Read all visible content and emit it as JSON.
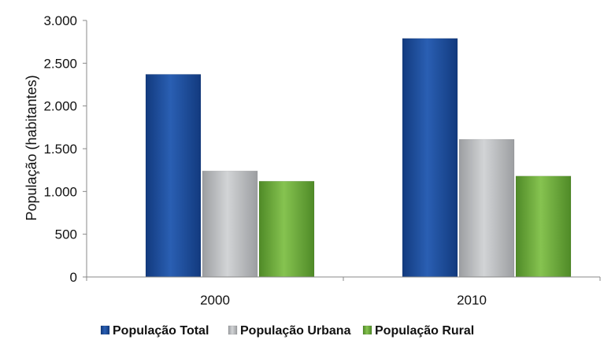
{
  "chart_data": {
    "type": "bar",
    "title": "",
    "xlabel": "",
    "ylabel": "População (habitantes)",
    "categories": [
      "2000",
      "2010"
    ],
    "ylim": [
      0,
      3000
    ],
    "yticks": [
      0,
      500,
      1000,
      1500,
      2000,
      2500,
      3000
    ],
    "ytick_labels": [
      "0",
      "500",
      "1.000",
      "1.500",
      "2.000",
      "2.500",
      "3.000"
    ],
    "grid": false,
    "legend_position": "bottom",
    "series": [
      {
        "name": "População Total",
        "values": [
          2370,
          2790
        ],
        "color": "#1f4e9c"
      },
      {
        "name": "População Urbana",
        "values": [
          1240,
          1610
        ],
        "color": "#b9bbbd"
      },
      {
        "name": "População Rural",
        "values": [
          1120,
          1180
        ],
        "color": "#6fae3d"
      }
    ]
  }
}
